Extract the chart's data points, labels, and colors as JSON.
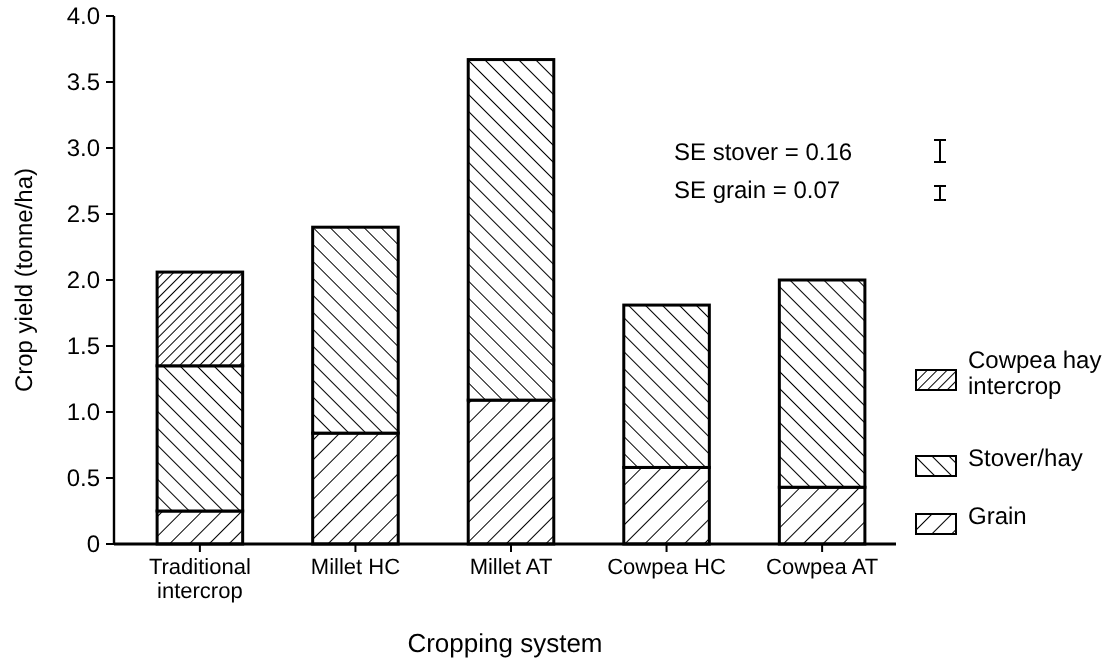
{
  "chart_data": {
    "type": "bar",
    "stacked": true,
    "xlabel": "Cropping system",
    "ylabel": "Crop yield (tonne/ha)",
    "categories": [
      "Traditional intercrop",
      "Millet HC",
      "Millet AT",
      "Cowpea HC",
      "Cowpea AT"
    ],
    "series": [
      {
        "name": "Grain",
        "color": "#000000",
        "values": [
          0.25,
          0.84,
          1.09,
          0.58,
          0.43
        ]
      },
      {
        "name": "Stover/hay",
        "color": "#000000",
        "values": [
          1.1,
          1.56,
          2.58,
          1.23,
          1.57
        ]
      },
      {
        "name": "Cowpea hay intercrop",
        "color": "#000000",
        "values": [
          0.71,
          null,
          null,
          null,
          null
        ]
      }
    ],
    "ylim": [
      0,
      4
    ],
    "yticks": [
      0,
      {
        "value": 0.5,
        "label": "0.5"
      },
      {
        "value": 1,
        "label": "1.0"
      },
      {
        "value": 1.5,
        "label": "1.5"
      },
      {
        "value": 2,
        "label": "2.0"
      },
      {
        "value": 2.5,
        "label": "2.5"
      },
      {
        "value": 3,
        "label": "3.0"
      },
      {
        "value": 3.5,
        "label": "3.5"
      },
      {
        "value": 4,
        "label": "4.0"
      }
    ],
    "grid": false,
    "legend": "right",
    "annotations": [
      "SE stover = 0.16",
      "SE grain = 0.07"
    ]
  }
}
